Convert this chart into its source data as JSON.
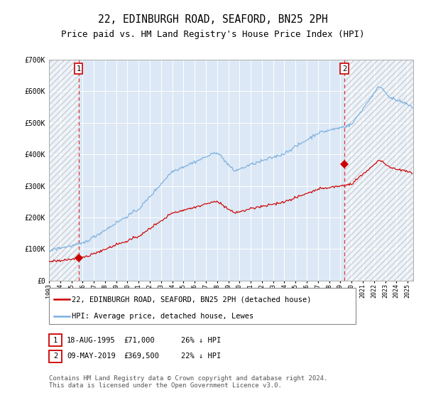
{
  "title": "22, EDINBURGH ROAD, SEAFORD, BN25 2PH",
  "subtitle": "Price paid vs. HM Land Registry's House Price Index (HPI)",
  "title_fontsize": 10.5,
  "subtitle_fontsize": 9,
  "legend_line1": "22, EDINBURGH ROAD, SEAFORD, BN25 2PH (detached house)",
  "legend_line2": "HPI: Average price, detached house, Lewes",
  "annotation1_date": "18-AUG-1995",
  "annotation1_price": "£71,000",
  "annotation1_hpi": "26% ↓ HPI",
  "annotation2_date": "09-MAY-2019",
  "annotation2_price": "£369,500",
  "annotation2_hpi": "22% ↓ HPI",
  "footer": "Contains HM Land Registry data © Crown copyright and database right 2024.\nThis data is licensed under the Open Government Licence v3.0.",
  "plot_bg": "#dce8f5",
  "grid_color": "#ffffff",
  "red_line_color": "#cc0000",
  "blue_line_color": "#7aafe0",
  "point1_x_year": 1995.63,
  "point1_y": 71000,
  "point2_x_year": 2019.36,
  "point2_y": 369500,
  "vline_color": "#dd3333",
  "ylim": [
    0,
    700000
  ],
  "xlim_start": 1993.0,
  "xlim_end": 2025.5
}
